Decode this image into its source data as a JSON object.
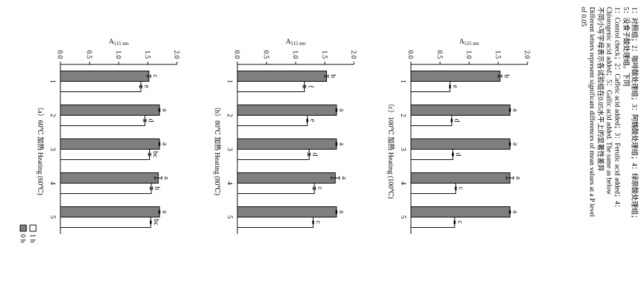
{
  "figure": {
    "legend": [
      {
        "label": "0 h",
        "color": "#7f7f7f"
      },
      {
        "label": "1 h",
        "color": "#ffffff"
      }
    ],
    "caption_lines": [
      "1：对照组；2：咖啡酸处理组；3：阿魏酸处理组；4：绿原酸处理组；",
      "5：没食子酸处理组。下同",
      "1：Control check；2：Caffeic acid added；3：Ferulic acid added；4：",
      "Chlorogenic acid added；5：Gallic acid added. The same as below",
      "不同小写字母表示各试验组在0.05水平上的显著性差异",
      "Different letters represent significant differences of mean values at a P level",
      "of 0.05"
    ]
  },
  "chart_data": [
    {
      "type": "bar",
      "title": "（a）60℃ 加热 Heating (60℃)",
      "ylabel": "A515 nm",
      "ylim": [
        0,
        2.0
      ],
      "yticks": [
        "0.0",
        "0.5",
        "1.0",
        "1.5",
        "2.0"
      ],
      "categories": [
        "1",
        "2",
        "3",
        "4",
        "5"
      ],
      "series": [
        {
          "name": "0 h",
          "values": [
            1.52,
            1.7,
            1.7,
            1.68,
            1.7
          ],
          "errors": [
            0.03,
            0.01,
            0.01,
            0.06,
            0.01
          ],
          "letters": [
            "c",
            "a",
            "a",
            "a",
            "a"
          ]
        },
        {
          "name": "1 h",
          "values": [
            1.38,
            1.45,
            1.53,
            1.56,
            1.55
          ],
          "errors": [
            0.02,
            0.02,
            0.02,
            0.02,
            0.01
          ],
          "letters": [
            "e",
            "d",
            "bc",
            "b",
            "bc"
          ]
        }
      ]
    },
    {
      "type": "bar",
      "title": "（b）80℃ 加热 Heating (80℃)",
      "ylabel": "A515 nm",
      "ylim": [
        0,
        2.0
      ],
      "yticks": [
        "0.0",
        "0.5",
        "1.0",
        "1.5",
        "2.0"
      ],
      "categories": [
        "1",
        "2",
        "3",
        "4",
        "5"
      ],
      "series": [
        {
          "name": "0 h",
          "values": [
            1.53,
            1.7,
            1.7,
            1.68,
            1.7
          ],
          "errors": [
            0.03,
            0.01,
            0.01,
            0.07,
            0.01
          ],
          "letters": [
            "b",
            "a",
            "a",
            "a",
            "a"
          ]
        },
        {
          "name": "1 h",
          "values": [
            1.15,
            1.2,
            1.23,
            1.32,
            1.3
          ],
          "errors": [
            0.02,
            0.01,
            0.02,
            0.02,
            0.01
          ],
          "letters": [
            "f",
            "e",
            "d",
            "c",
            "c"
          ]
        }
      ]
    },
    {
      "type": "bar",
      "title": "（c）100℃ 加热 Heating (100℃)",
      "ylabel": "A515 nm",
      "ylim": [
        0,
        2.0
      ],
      "yticks": [
        "0.0",
        "0.5",
        "1.0",
        "1.5",
        "2.0"
      ],
      "categories": [
        "1",
        "2",
        "3",
        "4",
        "5"
      ],
      "series": [
        {
          "name": "0 h",
          "values": [
            1.53,
            1.7,
            1.7,
            1.7,
            1.7
          ],
          "errors": [
            0.03,
            0.01,
            0.01,
            0.06,
            0.01
          ],
          "letters": [
            "b",
            "a",
            "a",
            "a",
            "a"
          ]
        },
        {
          "name": "1 h",
          "values": [
            0.67,
            0.7,
            0.72,
            0.77,
            0.75
          ],
          "errors": [
            0.01,
            0.01,
            0.01,
            0.01,
            0.01
          ],
          "letters": [
            "e",
            "d",
            "d",
            "c",
            "c"
          ]
        }
      ]
    }
  ]
}
